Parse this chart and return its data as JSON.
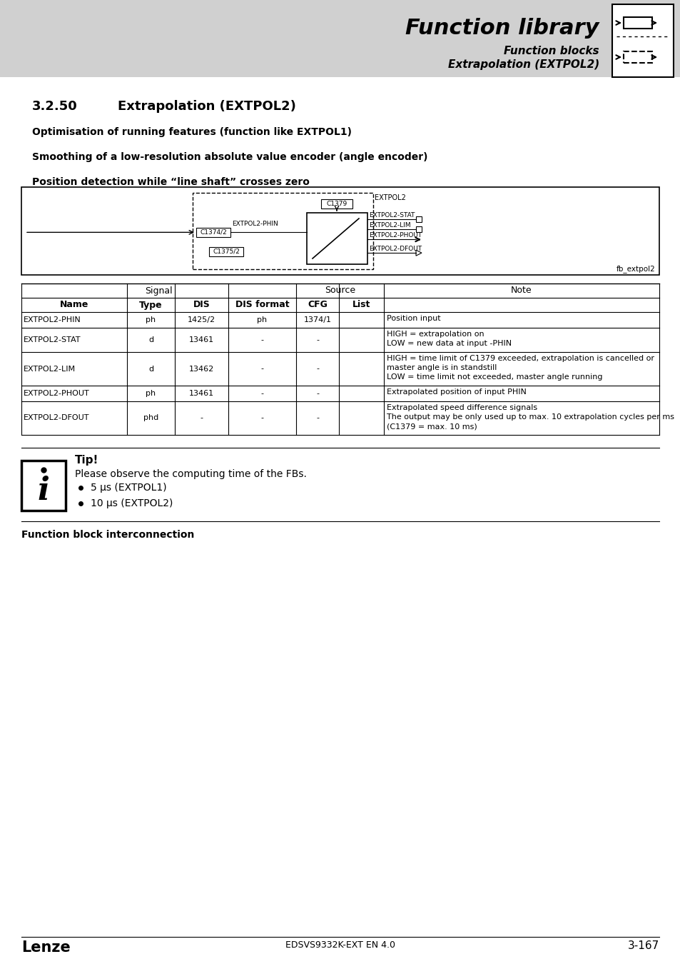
{
  "page_bg": "#ffffff",
  "header_bg": "#d0d0d0",
  "header_title": "Function library",
  "header_sub1": "Function blocks",
  "header_sub2": "Extrapolation (EXTPOL2)",
  "section_num": "3.2.50",
  "section_title": "Extrapolation (EXTPOL2)",
  "bullet1": "Optimisation of running features (function like EXTPOL1)",
  "bullet2": "Smoothing of a low-resolution absolute value encoder (angle encoder)",
  "bullet3": "Position detection while “line shaft” crosses zero",
  "table_rows": [
    [
      "EXTPOL2-PHIN",
      "ph",
      "1425/2",
      "ph",
      "1374/1",
      "",
      "Position input"
    ],
    [
      "EXTPOL2-STAT",
      "d",
      "13461",
      "-",
      "-",
      "",
      "HIGH = extrapolation on\nLOW = new data at input -PHIN"
    ],
    [
      "EXTPOL2-LIM",
      "d",
      "13462",
      "-",
      "-",
      "",
      "HIGH = time limit of C1379 exceeded, extrapolation is cancelled or\nmaster angle is in standstill\nLOW = time limit not exceeded, master angle running"
    ],
    [
      "EXTPOL2-PHOUT",
      "ph",
      "13461",
      "-",
      "-",
      "",
      "Extrapolated position of input PHIN"
    ],
    [
      "EXTPOL2-DFOUT",
      "phd",
      "-",
      "-",
      "-",
      "",
      "Extrapolated speed difference signals\nThe output may be only used up to max. 10 extrapolation cycles per ms\n(C1379 = max. 10 ms)"
    ]
  ],
  "tip_title": "Tip!",
  "tip_text": "Please observe the computing time of the FBs.",
  "tip_bullets": [
    "5 μs (EXTPOL1)",
    "10 μs (EXTPOL2)"
  ],
  "fb_label": "Function block interconnection",
  "footer_left": "Lenze",
  "footer_center": "EDSVS9332K-EXT EN 4.0",
  "footer_right": "3-167"
}
